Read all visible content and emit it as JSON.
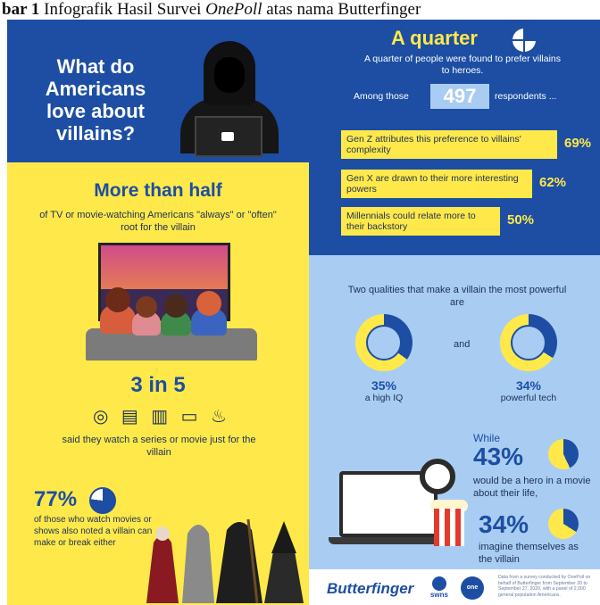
{
  "caption": {
    "prefix": "bar 1 ",
    "text_a": "Infografik Hasil Survei ",
    "italic": "OnePoll",
    "text_b": " atas nama Butterfinger"
  },
  "left": {
    "title": "What do Americans love about villains?",
    "more_than_half": "More than half",
    "mth_sub": "of TV or movie-watching Americans \"always\" or \"often\" root for the villain",
    "three_in_five": "3 in 5",
    "watch_icons": [
      "film-reel",
      "clapperboard",
      "film-strip",
      "tv",
      "popcorn"
    ],
    "said": "said they watch a series or movie just for the villain",
    "p77": "77%",
    "p77_value": 0.77,
    "p77_sub": "of those who watch movies or shows also noted a villain can make or break either"
  },
  "right": {
    "quarter": "A quarter",
    "quarter_sub": "A quarter of people were found to prefer villains to heroes.",
    "among": "Among those",
    "n": "497",
    "respondents": "respondents ...",
    "gens": [
      {
        "text": "Gen Z attributes this preference to villains' complexity",
        "pct": "69%"
      },
      {
        "text": "Gen X are drawn to their more interesting powers",
        "pct": "62%"
      },
      {
        "text": "Millennials could relate more to their backstory",
        "pct": "50%"
      }
    ],
    "two_qualities": "Two qualities that make a villain the most powerful are",
    "and": "and",
    "q1_pct": "35%",
    "q1_label": "a high IQ",
    "q1_value": 0.35,
    "q2_pct": "34%",
    "q2_label": "powerful tech",
    "q2_value": 0.34,
    "while": "While",
    "p43": "43%",
    "p43_value": 0.43,
    "hero": "would be a hero in a movie about their life,",
    "p34": "34%",
    "p34_value": 0.34,
    "imagine": "imagine themselves as the villain"
  },
  "footer": {
    "brand": "Butterfinger",
    "swns": "swns",
    "onepoll": "one poll",
    "source": "Data from a survey conducted by OnePoll on behalf of Butterfinger from September 20 to September 27, 2020, with a panel of 2,000 general population Americans."
  },
  "colors": {
    "blue": "#1d4ea3",
    "yellow": "#ffe94a",
    "light_blue": "#a9cdf2"
  }
}
